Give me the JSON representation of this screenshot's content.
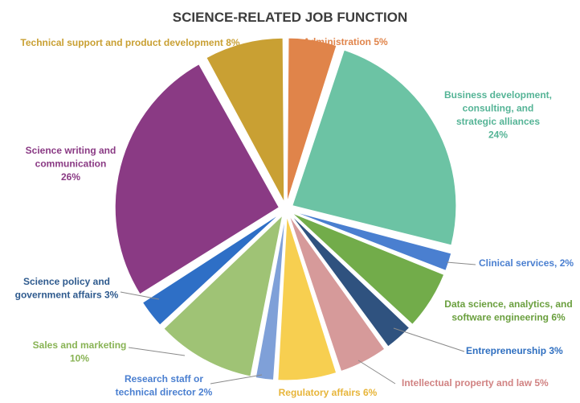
{
  "chart_data": {
    "type": "pie",
    "title": "SCIENCE-RELATED JOB FUNCTION",
    "slices": [
      {
        "label_lines": [
          "Administration 5%"
        ],
        "value": 5,
        "color": "#E0844A"
      },
      {
        "label_lines": [
          "Business development,",
          "consulting, and",
          "strategic alliances",
          "24%"
        ],
        "value": 24,
        "color": "#6CC3A4"
      },
      {
        "label_lines": [
          "Clinical services, 2%"
        ],
        "value": 2,
        "color": "#4A7FD0"
      },
      {
        "label_lines": [
          "Data science, analytics, and",
          "software engineering 6%"
        ],
        "value": 6,
        "color": "#72AC4A"
      },
      {
        "label_lines": [
          "Entrepreneurship 3%"
        ],
        "value": 3,
        "color": "#2F527F"
      },
      {
        "label_lines": [
          "Intellectual property and law 5%"
        ],
        "value": 5,
        "color": "#D69A9A"
      },
      {
        "label_lines": [
          "Regulatory affairs 6%"
        ],
        "value": 6,
        "color": "#F7CF50"
      },
      {
        "label_lines": [
          "Research staff or",
          "technical director 2%"
        ],
        "value": 2,
        "color": "#7FA0D8"
      },
      {
        "label_lines": [
          "Sales and marketing",
          "10%"
        ],
        "value": 10,
        "color": "#9FC375"
      },
      {
        "label_lines": [
          "Science policy and",
          "government affairs 3%"
        ],
        "value": 3,
        "color": "#2E6FC6"
      },
      {
        "label_lines": [
          "Science writing and",
          "communication",
          "26%"
        ],
        "value": 26,
        "color": "#8A3A84"
      },
      {
        "label_lines": [
          "Technical support and product development 8%"
        ],
        "value": 8,
        "color": "#C9A033"
      }
    ]
  }
}
